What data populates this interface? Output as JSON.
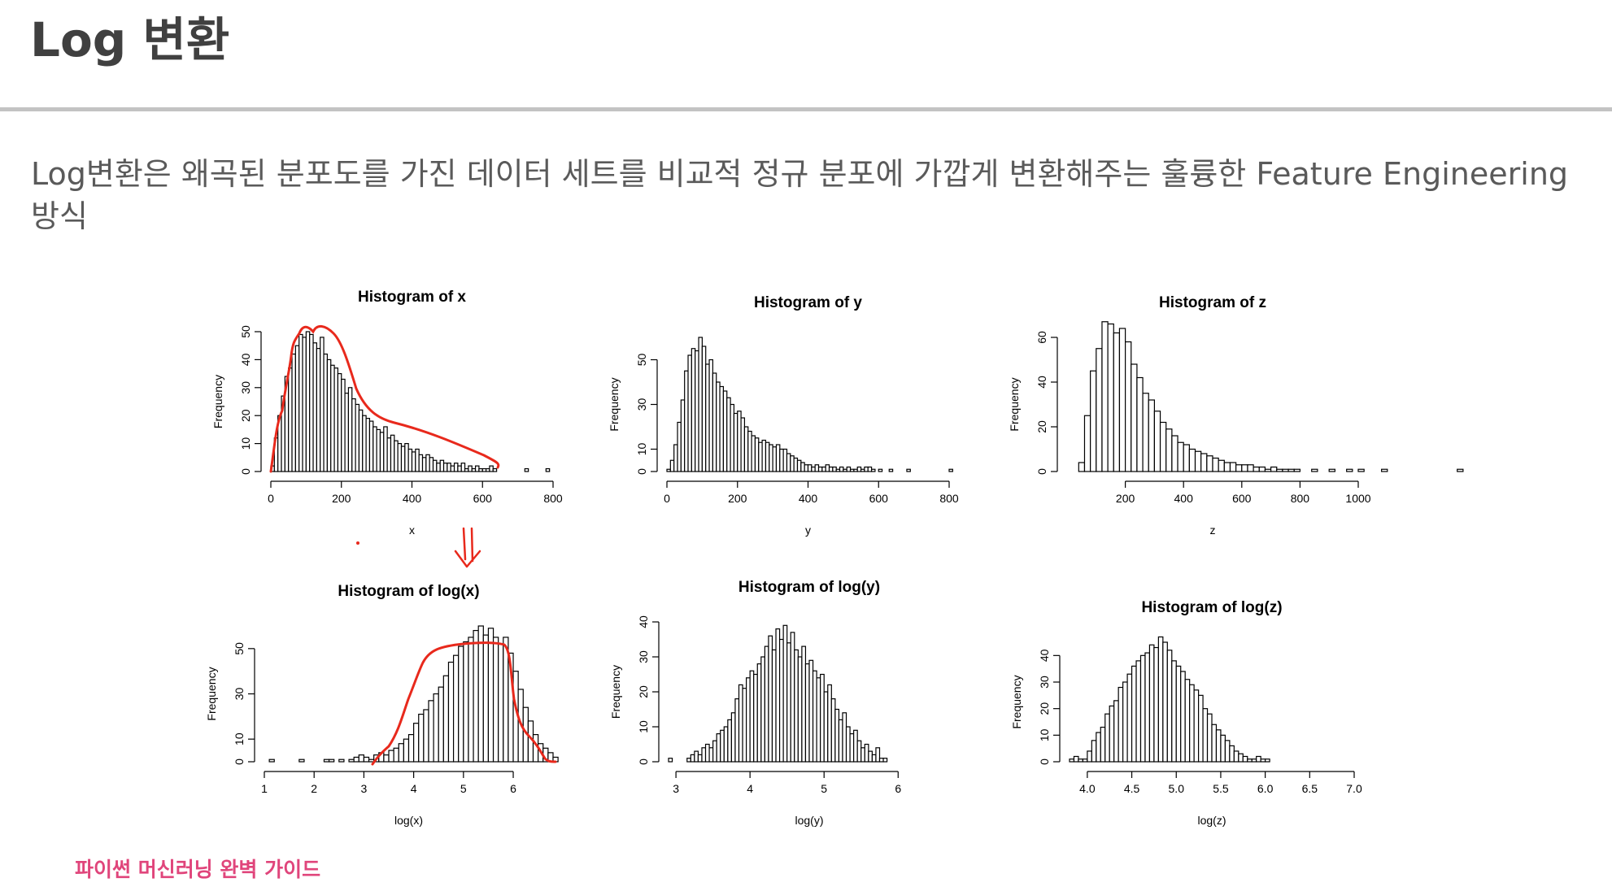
{
  "page": {
    "title": "Log 변환",
    "description": "Log변환은 왜곡된 분포도를 가진 데이터 세트를 비교적 정규 분포에 가깝게 변환해주는 훌륭한 Feature Engineering 방식",
    "footer": "파이썬 머신러닝 완벽 가이드",
    "accent_color": "#e0457b",
    "annotation_color": "#e8291c"
  },
  "chart_data": [
    {
      "type": "bar",
      "title": "Histogram of x",
      "xlabel": "x",
      "ylabel": "Frequency",
      "xlim": [
        0,
        800
      ],
      "ylim": [
        0,
        50
      ],
      "xticks": [
        0,
        200,
        400,
        600,
        800
      ],
      "yticks": [
        0,
        10,
        20,
        30,
        40,
        50
      ],
      "bin_start": 0,
      "bin_width": 10,
      "values": [
        2,
        12,
        20,
        27,
        34,
        37,
        42,
        45,
        49,
        48,
        50,
        49,
        46,
        44,
        48,
        42,
        40,
        38,
        37,
        35,
        33,
        28,
        30,
        26,
        24,
        22,
        20,
        19,
        18,
        16,
        15,
        14,
        16,
        12,
        13,
        11,
        10,
        9,
        10,
        8,
        7,
        8,
        6,
        5,
        6,
        5,
        4,
        3,
        4,
        3,
        3,
        2,
        3,
        2,
        3,
        1,
        2,
        1,
        2,
        1,
        1,
        1,
        2,
        1,
        0,
        0,
        0,
        0,
        0,
        0,
        0,
        0,
        1,
        0,
        0,
        0,
        0,
        0,
        1
      ]
    },
    {
      "type": "bar",
      "title": "Histogram of y",
      "xlabel": "y",
      "ylabel": "Frequency",
      "xlim": [
        0,
        800
      ],
      "ylim": [
        0,
        60
      ],
      "xticks": [
        0,
        200,
        400,
        600,
        800
      ],
      "yticks": [
        0,
        10,
        30,
        50
      ],
      "bin_start": 0,
      "bin_width": 10,
      "values": [
        1,
        5,
        12,
        22,
        32,
        45,
        52,
        55,
        54,
        60,
        56,
        48,
        50,
        44,
        40,
        38,
        36,
        33,
        30,
        26,
        27,
        24,
        20,
        18,
        16,
        15,
        13,
        14,
        13,
        12,
        11,
        12,
        10,
        10,
        8,
        7,
        6,
        5,
        4,
        3,
        3,
        2,
        3,
        2,
        2,
        3,
        2,
        2,
        1,
        2,
        1,
        2,
        1,
        1,
        2,
        1,
        2,
        2,
        1,
        0,
        1,
        0,
        0,
        1,
        0,
        0,
        0,
        0,
        1,
        0,
        0,
        0,
        0,
        0,
        0,
        0,
        0,
        0,
        0,
        0,
        1
      ]
    },
    {
      "type": "bar",
      "title": "Histogram of z",
      "xlabel": "z",
      "ylabel": "Frequency",
      "xlim": [
        0,
        1000
      ],
      "ylim": [
        0,
        60
      ],
      "xticks": [
        200,
        400,
        600,
        800,
        1000
      ],
      "yticks": [
        0,
        20,
        40,
        60
      ],
      "bin_start": 40,
      "bin_width": 20,
      "values": [
        4,
        25,
        45,
        55,
        67,
        66,
        62,
        64,
        58,
        48,
        42,
        35,
        32,
        27,
        22,
        19,
        16,
        13,
        12,
        10,
        9,
        8,
        7,
        6,
        5,
        4,
        4,
        3,
        3,
        3,
        2,
        2,
        1,
        2,
        1,
        1,
        1,
        1,
        0,
        0,
        1,
        0,
        0,
        1,
        0,
        0,
        1,
        0,
        1,
        0,
        0,
        0,
        1,
        0,
        0,
        0,
        0,
        0,
        0,
        0,
        0,
        0,
        0,
        0,
        0,
        1
      ]
    },
    {
      "type": "bar",
      "title": "Histogram of log(x)",
      "xlabel": "log(x)",
      "ylabel": "Frequency",
      "xlim": [
        1,
        6.8
      ],
      "ylim": [
        0,
        60
      ],
      "xticks": [
        1,
        2,
        3,
        4,
        5,
        6
      ],
      "yticks": [
        0,
        10,
        30,
        50
      ],
      "bin_start": 1.1,
      "bin_width": 0.1,
      "values": [
        1,
        0,
        0,
        0,
        0,
        0,
        1,
        0,
        0,
        0,
        0,
        1,
        1,
        0,
        1,
        0,
        1,
        2,
        3,
        2,
        1,
        3,
        4,
        3,
        5,
        6,
        8,
        10,
        12,
        17,
        21,
        23,
        27,
        30,
        33,
        38,
        44,
        47,
        51,
        53,
        55,
        58,
        60,
        56,
        59,
        55,
        52,
        55,
        48,
        40,
        32,
        24,
        18,
        12,
        8,
        6,
        4,
        2
      ]
    },
    {
      "type": "bar",
      "title": "Histogram of log(y)",
      "xlabel": "log(y)",
      "ylabel": "Frequency",
      "xlim": [
        2.9,
        6.7
      ],
      "ylim": [
        0,
        40
      ],
      "xticks": [
        3,
        4,
        5,
        6
      ],
      "yticks": [
        0,
        10,
        20,
        30,
        40
      ],
      "bin_start": 2.9,
      "bin_width": 0.05,
      "values": [
        1,
        0,
        0,
        0,
        0,
        1,
        2,
        3,
        2,
        4,
        5,
        4,
        6,
        8,
        9,
        10,
        12,
        14,
        18,
        22,
        21,
        24,
        26,
        25,
        28,
        30,
        33,
        36,
        32,
        38,
        35,
        39,
        34,
        37,
        32,
        30,
        33,
        28,
        29,
        26,
        24,
        25,
        20,
        22,
        18,
        15,
        12,
        14,
        10,
        8,
        9,
        6,
        4,
        5,
        3,
        2,
        4,
        1,
        1
      ]
    },
    {
      "type": "bar",
      "title": "Histogram of log(z)",
      "xlabel": "log(z)",
      "ylabel": "Frequency",
      "xlim": [
        3.8,
        7.0
      ],
      "ylim": [
        0,
        45
      ],
      "xticks": [
        4.0,
        4.5,
        5.0,
        5.5,
        6.0,
        6.5,
        7.0
      ],
      "yticks": [
        0,
        10,
        20,
        30,
        40
      ],
      "bin_start": 3.8,
      "bin_width": 0.05,
      "values": [
        1,
        2,
        1,
        1,
        4,
        8,
        11,
        13,
        18,
        21,
        23,
        28,
        30,
        33,
        36,
        38,
        40,
        41,
        44,
        43,
        47,
        45,
        42,
        38,
        36,
        34,
        31,
        29,
        27,
        25,
        20,
        18,
        14,
        12,
        10,
        8,
        6,
        4,
        3,
        2,
        1,
        1,
        2,
        1,
        1,
        0
      ]
    }
  ]
}
